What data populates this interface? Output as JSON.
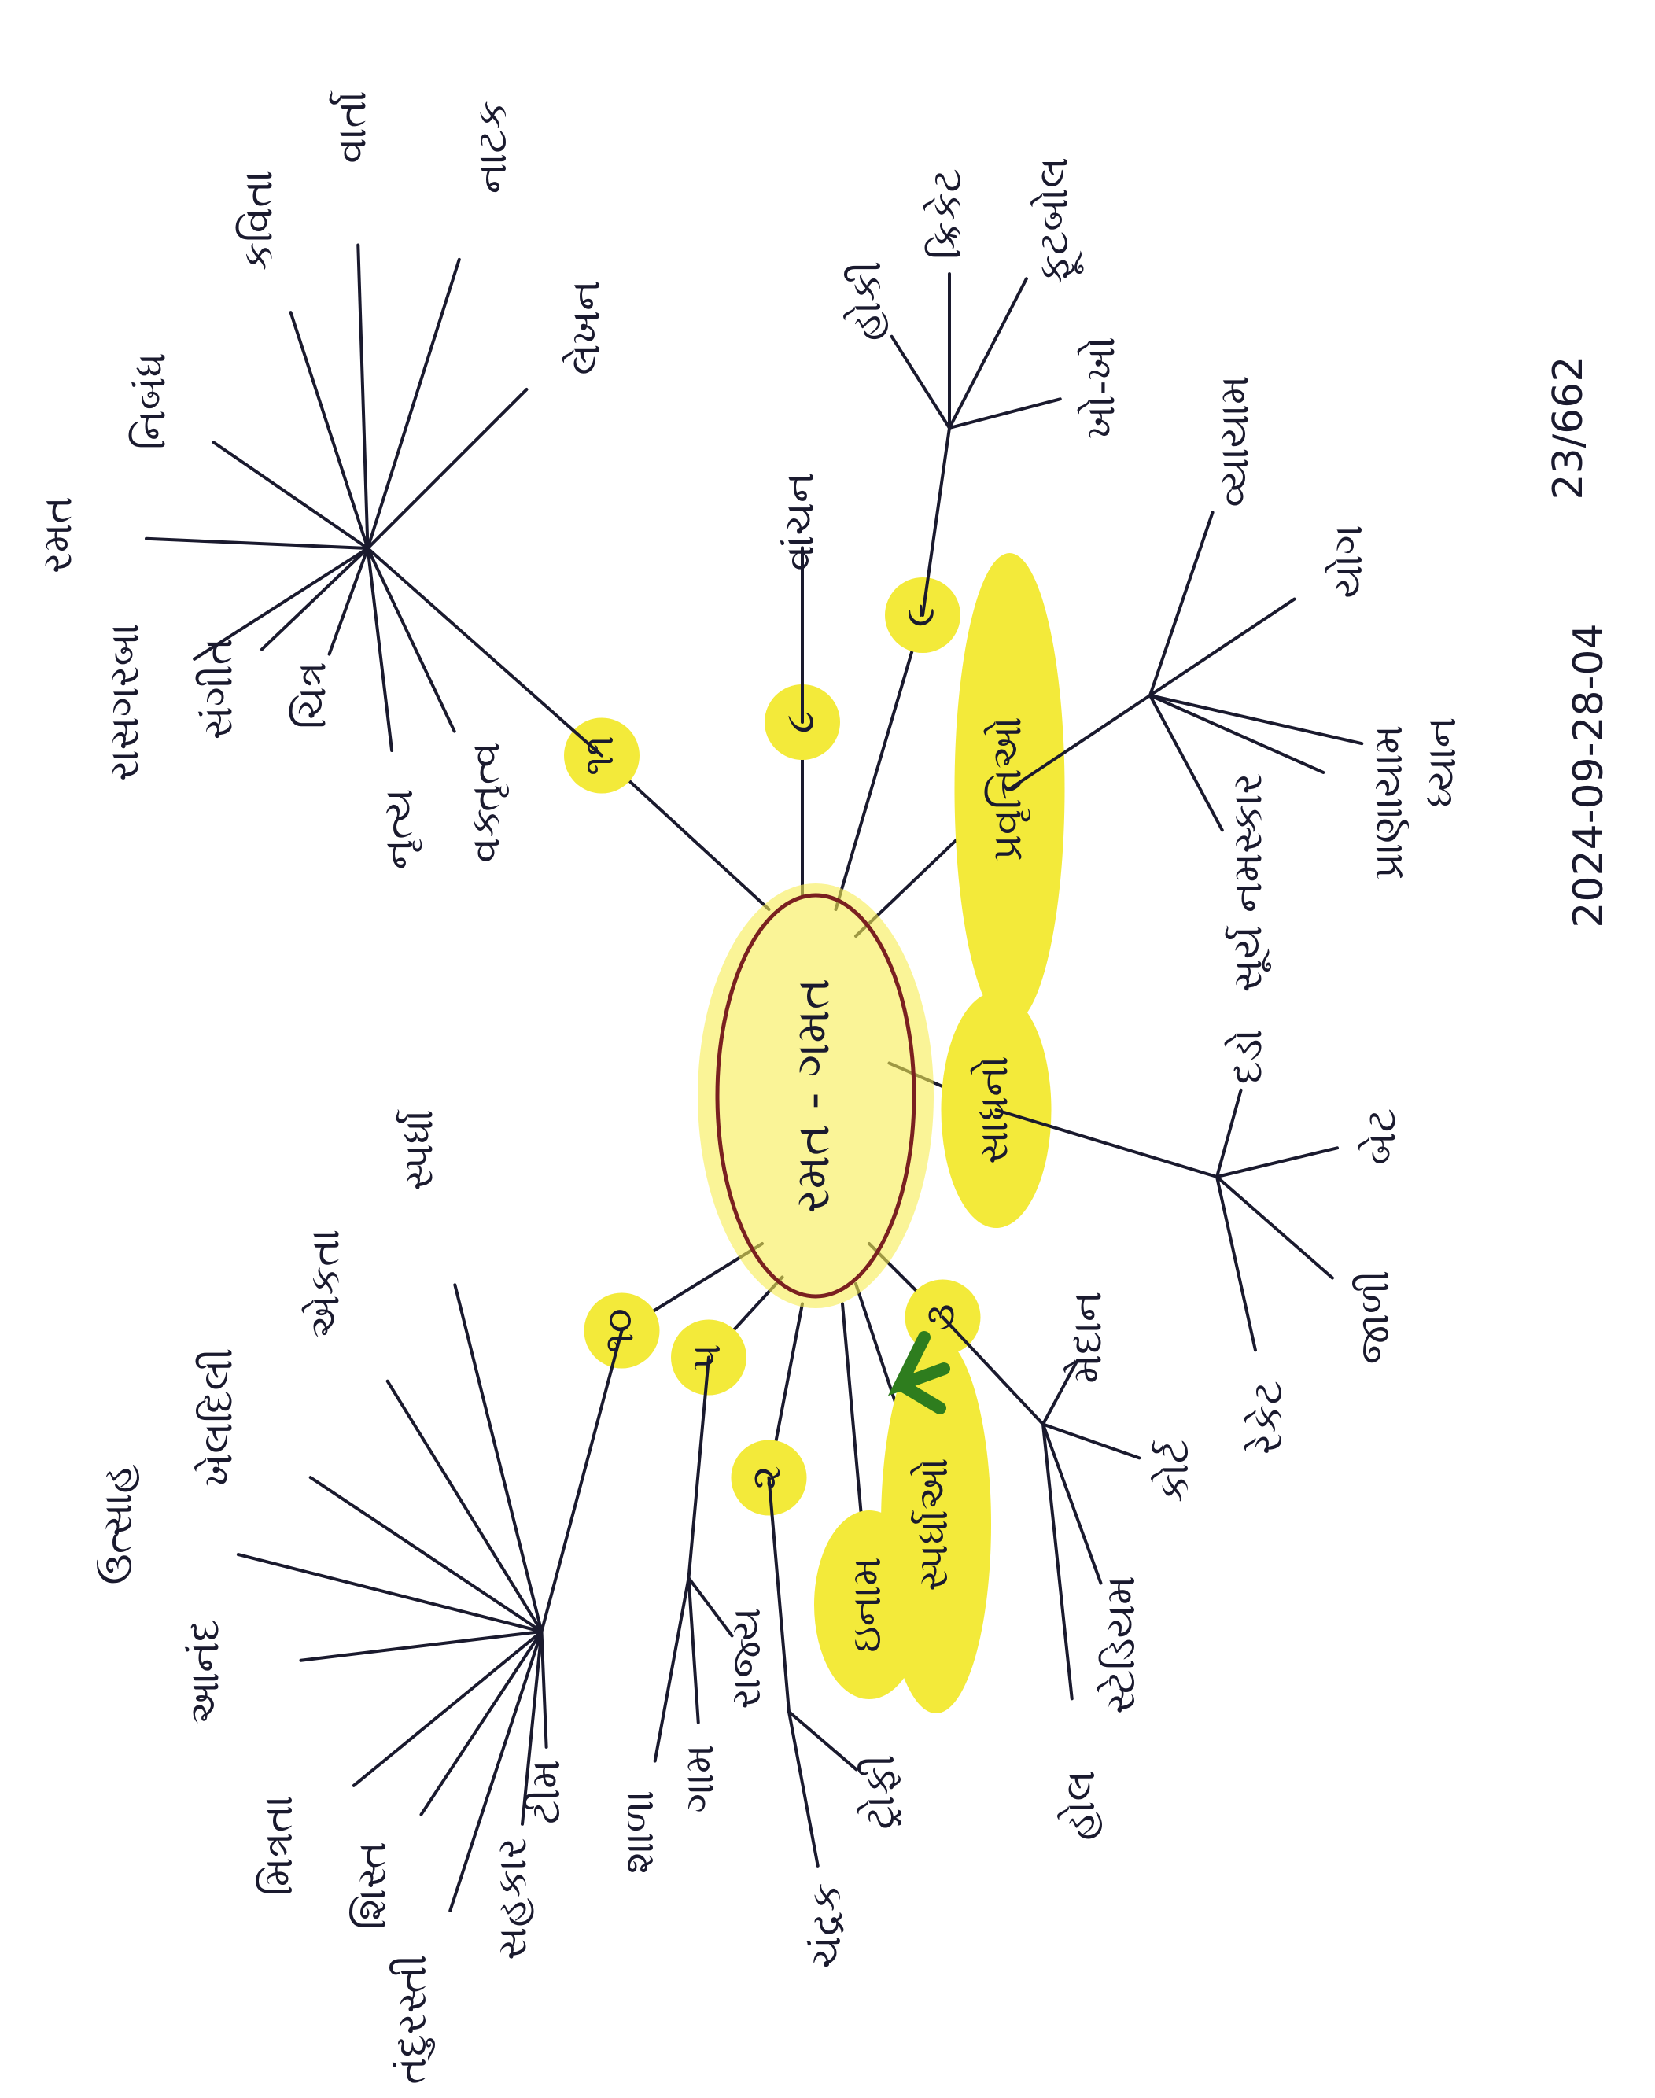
{
  "center": {
    "label": "રમત - ગમત"
  },
  "reference": "23/662",
  "date": "2024-09-28-04",
  "branches": [
    {
      "label": "૧૧",
      "leaves": [
        "રાસગરબા",
        "સંગીત",
        "ચિત્ર",
        "નૃત્ય",
        "વક્તૃત્વ",
        "રમત",
        "નિબંધ",
        "કવિતા",
        "વાર્તા",
        "નાટક",
        "લેખન"
      ]
    },
    {
      "label": "૮",
      "leaves": [
        "વાંચન"
      ]
    },
    {
      "label": "૯",
      "leaves": [
        "હોકી",
        "ક્રિકેટ",
        "ફૂટબોલ",
        "ખો-ખો"
      ]
    },
    {
      "label": "પ્રવૃત્તિઓ",
      "leaves": [
        "વ્યાયામ",
        "યોગ",
        "પ્રાણાયામ",
        "સૂર્ય નમસ્કાર",
        "ધ્યાન"
      ]
    },
    {
      "label": "સાધનો",
      "leaves": [
        "દડો",
        "બેટ",
        "જાળી",
        "રેકેટ"
      ]
    },
    {
      "label": "૩",
      "leaves": [
        "મેદાન",
        "કોર્ટ",
        "સ્ટેડિયમ",
        "હોલ"
      ]
    },
    {
      "label": "સ્પર્ધાઓ",
      "leaves": []
    },
    {
      "label": "ઇનામ",
      "leaves": []
    },
    {
      "label": "૨",
      "leaves": [
        "ચંદ્રક",
        "ટ્રોફી"
      ]
    },
    {
      "label": "૫",
      "leaves": [
        "શાળા",
        "ગામ",
        "રાજ્ય"
      ]
    },
    {
      "label": "૧૦",
      "leaves": [
        "ઉત્સાહ",
        "આનંદ",
        "મિત્રતા",
        "શિસ્ત",
        "તંદુરસ્તી",
        "સહકાર",
        "ટીમ",
        "ખેલદિલી",
        "એકતા",
        "સ્પર્ધા"
      ]
    }
  ]
}
